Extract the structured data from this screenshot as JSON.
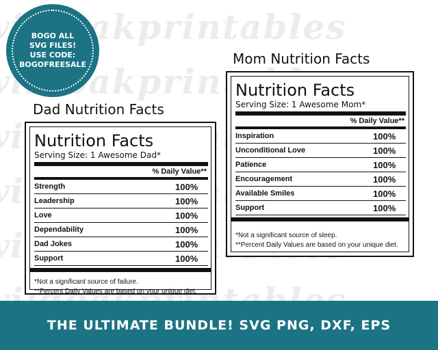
{
  "watermark": {
    "text": "wildoakprintables"
  },
  "badge": {
    "lines": [
      "BOGO ALL",
      "SVG FILES!",
      "USE CODE:",
      "BOGOFREESALE"
    ]
  },
  "dad": {
    "heading": "Dad Nutrition Facts",
    "title": "Nutrition Facts",
    "serving": "Serving Size: 1 Awesome Dad*",
    "dv_header": "% Daily Value**",
    "rows": [
      {
        "label": "Strength",
        "value": "100%"
      },
      {
        "label": "Leadership",
        "value": "100%"
      },
      {
        "label": "Love",
        "value": "100%"
      },
      {
        "label": "Dependability",
        "value": "100%"
      },
      {
        "label": "Dad Jokes",
        "value": "100%"
      },
      {
        "label": "Support",
        "value": "100%"
      }
    ],
    "footnote1": "*Not a significant source of failure.",
    "footnote2": "**Percent Daily Values are based on your unique diet."
  },
  "mom": {
    "heading": "Mom Nutrition Facts",
    "title": "Nutrition Facts",
    "serving": "Serving Size: 1 Awesome Mom*",
    "dv_header": "% Daily Value**",
    "rows": [
      {
        "label": "Inspiration",
        "value": "100%"
      },
      {
        "label": "Unconditional Love",
        "value": "100%"
      },
      {
        "label": "Patience",
        "value": "100%"
      },
      {
        "label": "Encouragement",
        "value": "100%"
      },
      {
        "label": "Available Smiles",
        "value": "100%"
      },
      {
        "label": "Support",
        "value": "100%"
      }
    ],
    "footnote1": "*Not a significant source of sleep.",
    "footnote2": "**Percent Daily Values are based on your unique diet."
  },
  "banner": {
    "text": "THE ULTIMATE BUNDLE! SVG PNG, DXF, EPS"
  },
  "colors": {
    "teal": "#1c7384",
    "watermark": "#ececec"
  }
}
